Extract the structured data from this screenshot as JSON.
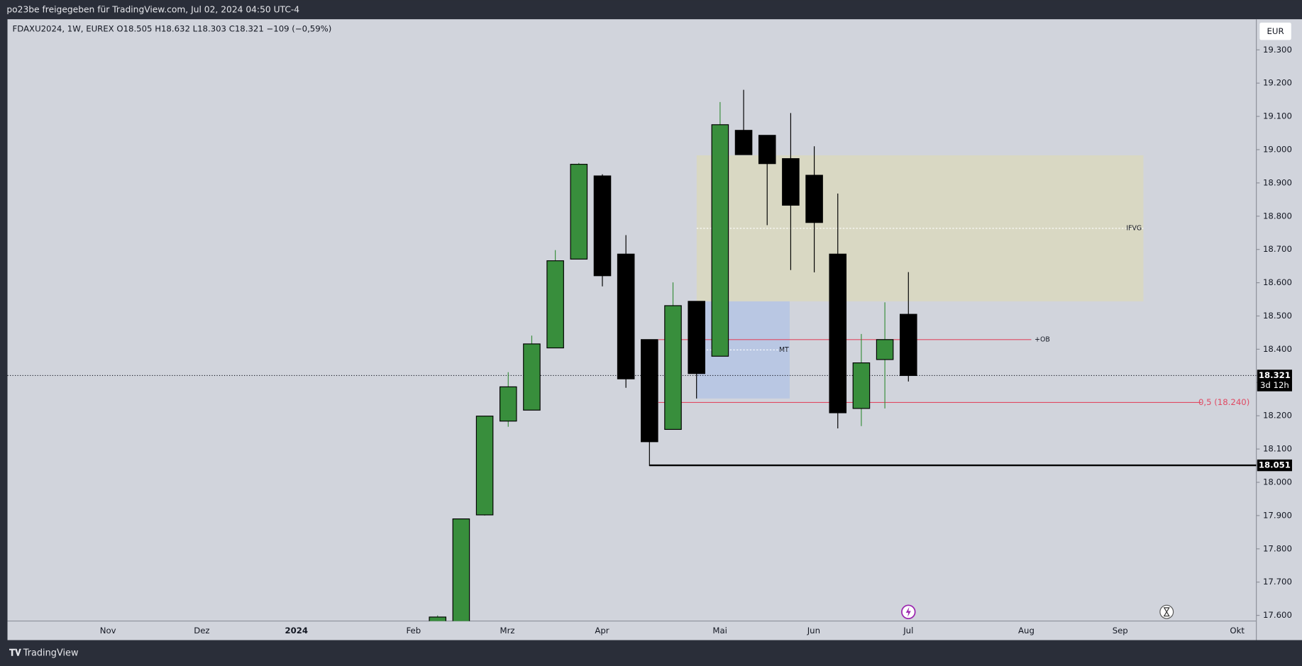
{
  "header": {
    "title": "po23be freigegeben für TradingView.com, Jul 02, 2024 04:50 UTC-4"
  },
  "footer": {
    "brand": "TradingView"
  },
  "chart_data": {
    "type": "candlestick",
    "legend": "FDAXU2024, 1W, EUREX  O18.505  H18.632  L18.303  C18.321  −109 (−0,59%)",
    "currency": "EUR",
    "up_color": "#388e3c",
    "down_color": "#000000",
    "open": [
      17450,
      17550,
      17902,
      18184,
      18217,
      18404,
      18671,
      18921,
      18686,
      18429,
      18159,
      18544,
      18379,
      19058,
      19043,
      18973,
      18923,
      18686,
      18222,
      18369,
      18505
    ],
    "high": [
      17600,
      17890,
      18200,
      18331,
      18441,
      18698,
      18960,
      18926,
      18743,
      18429,
      18601,
      18544,
      19143,
      19180,
      19043,
      19110,
      19010,
      18868,
      18446,
      18541,
      18632
    ],
    "low": [
      17420,
      17530,
      17900,
      18167,
      18217,
      18404,
      18671,
      18589,
      18284,
      18049,
      18159,
      18252,
      18379,
      18985,
      18773,
      18638,
      18631,
      18162,
      18169,
      18222,
      18303
    ],
    "close": [
      17595,
      17890,
      18199,
      18287,
      18416,
      18666,
      18956,
      18621,
      18311,
      18122,
      18531,
      18327,
      19075,
      18985,
      18958,
      18833,
      18781,
      18209,
      18359,
      18429,
      18321
    ],
    "xaxis_labels": [
      "Nov",
      "Dez",
      "2024",
      "Feb",
      "Mrz",
      "Apr",
      "Mai",
      "Jun",
      "Jul",
      "Aug",
      "Sep",
      "Okt"
    ],
    "ylim": [
      17583,
      19392
    ],
    "yticks": [
      {
        "value": 17600,
        "label": "17.600"
      },
      {
        "value": 17700,
        "label": "17.700"
      },
      {
        "value": 17800,
        "label": "17.800"
      },
      {
        "value": 17900,
        "label": "17.900"
      },
      {
        "value": 18000,
        "label": "18.000"
      },
      {
        "value": 18100,
        "label": "18.100"
      },
      {
        "value": 18200,
        "label": "18.200"
      },
      {
        "value": 18300,
        "label": "18.300"
      },
      {
        "value": 18400,
        "label": "18.400"
      },
      {
        "value": 18500,
        "label": "18.500"
      },
      {
        "value": 18600,
        "label": "18.600"
      },
      {
        "value": 18700,
        "label": "18.700"
      },
      {
        "value": 18800,
        "label": "18.800"
      },
      {
        "value": 18900,
        "label": "18.900"
      },
      {
        "value": 19000,
        "label": "19.000"
      },
      {
        "value": 19100,
        "label": "19.100"
      },
      {
        "value": 19200,
        "label": "19.200"
      },
      {
        "value": 19300,
        "label": "19.300"
      }
    ],
    "zones": [
      {
        "label": "IFVG",
        "top": 18983,
        "bottom": 18544,
        "color": "#d9d8c3"
      },
      {
        "label": "MT",
        "top": 18544,
        "bottom": 18252,
        "color": "#b9c7e3"
      }
    ],
    "levels": [
      {
        "label": "+OB",
        "value": 18429,
        "color": "#e04a63"
      },
      {
        "label": "0,5 (18.240)",
        "value": 18240,
        "color": "#e04a63"
      },
      {
        "label": "18.051",
        "value": 18051,
        "color": "#000000"
      }
    ],
    "last_price": {
      "value": 18321,
      "label": "18.321",
      "countdown": "3d 12h"
    }
  }
}
